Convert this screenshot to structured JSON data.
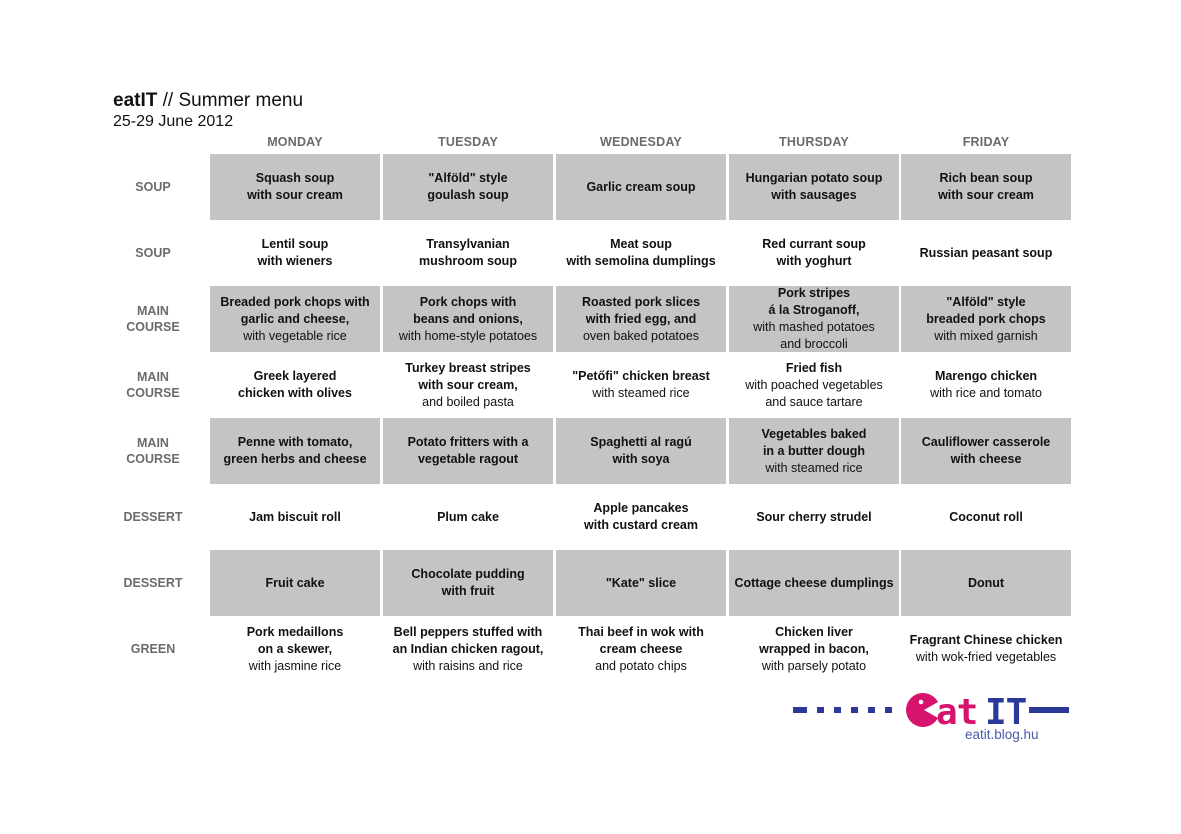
{
  "header": {
    "brand": "eatIT",
    "title_rest": " // Summer menu",
    "dates": "25-29 June 2012"
  },
  "days": [
    "MONDAY",
    "TUESDAY",
    "WEDNESDAY",
    "THURSDAY",
    "FRIDAY"
  ],
  "rows": [
    {
      "label": "SOUP",
      "cells": [
        {
          "main": "Squash soup\nwith sour cream",
          "sub": ""
        },
        {
          "main": "\"Alföld\" style\ngoulash soup",
          "sub": ""
        },
        {
          "main": "Garlic cream soup",
          "sub": ""
        },
        {
          "main": "Hungarian potato soup\nwith sausages",
          "sub": ""
        },
        {
          "main": "Rich bean soup\nwith sour cream",
          "sub": ""
        }
      ]
    },
    {
      "label": "SOUP",
      "cells": [
        {
          "main": "Lentil soup\nwith wieners",
          "sub": ""
        },
        {
          "main": "Transylvanian\nmushroom soup",
          "sub": ""
        },
        {
          "main": "Meat soup\nwith semolina dumplings",
          "sub": ""
        },
        {
          "main": "Red currant soup\nwith yoghurt",
          "sub": ""
        },
        {
          "main": "Russian peasant soup",
          "sub": ""
        }
      ]
    },
    {
      "label": "MAIN\nCOURSE",
      "cells": [
        {
          "main": "Breaded pork chops with\ngarlic and cheese,",
          "sub": "with vegetable rice"
        },
        {
          "main": "Pork chops with\nbeans and onions,",
          "sub": "with home-style potatoes"
        },
        {
          "main": "Roasted pork slices\nwith fried egg, and",
          "sub": "oven baked potatoes"
        },
        {
          "main": "Pork stripes\ná la Stroganoff,",
          "sub": "with mashed potatoes\nand broccoli"
        },
        {
          "main": "\"Alföld\" style\nbreaded pork chops",
          "sub": "with mixed garnish"
        }
      ]
    },
    {
      "label": "MAIN\nCOURSE",
      "cells": [
        {
          "main": "Greek layered\nchicken with olives",
          "sub": ""
        },
        {
          "main": "Turkey breast stripes\nwith sour cream,",
          "sub": "and boiled pasta"
        },
        {
          "main": "\"Petőfi\" chicken breast",
          "sub": "with steamed rice"
        },
        {
          "main": "Fried fish",
          "sub": "with poached vegetables\nand sauce tartare"
        },
        {
          "main": "Marengo chicken",
          "sub": "with rice and tomato"
        }
      ]
    },
    {
      "label": "MAIN\nCOURSE",
      "cells": [
        {
          "main": "Penne with tomato,\ngreen herbs and cheese",
          "sub": ""
        },
        {
          "main": "Potato fritters with a\nvegetable ragout",
          "sub": ""
        },
        {
          "main": "Spaghetti al ragú\nwith soya",
          "sub": ""
        },
        {
          "main": "Vegetables baked\nin a butter dough",
          "sub": "with steamed rice"
        },
        {
          "main": "Cauliflower casserole\nwith cheese",
          "sub": ""
        }
      ]
    },
    {
      "label": "DESSERT",
      "cells": [
        {
          "main": "Jam biscuit roll",
          "sub": ""
        },
        {
          "main": "Plum cake",
          "sub": ""
        },
        {
          "main": "Apple pancakes\nwith custard cream",
          "sub": ""
        },
        {
          "main": "Sour cherry strudel",
          "sub": ""
        },
        {
          "main": "Coconut roll",
          "sub": ""
        }
      ]
    },
    {
      "label": "DESSERT",
      "cells": [
        {
          "main": "Fruit cake",
          "sub": ""
        },
        {
          "main": "Chocolate pudding\nwith fruit",
          "sub": ""
        },
        {
          "main": "\"Kate\" slice",
          "sub": ""
        },
        {
          "main": "Cottage cheese dumplings",
          "sub": ""
        },
        {
          "main": "Donut",
          "sub": ""
        }
      ]
    },
    {
      "label": "GREEN",
      "cells": [
        {
          "main": "Pork medaillons\non a skewer,",
          "sub": "with jasmine rice"
        },
        {
          "main": "Bell peppers stuffed with\nan Indian chicken ragout,",
          "sub": "with raisins and rice"
        },
        {
          "main": "Thai beef in wok with\ncream cheese",
          "sub": "and potato chips"
        },
        {
          "main": "Chicken liver\nwrapped in bacon,",
          "sub": "with parsely potato"
        },
        {
          "main": "Fragrant Chinese chicken",
          "sub": "with wok-fried vegetables"
        }
      ]
    }
  ],
  "logo": {
    "wordmark": "eat IT",
    "url": "eatit.blog.hu",
    "colors": {
      "blue": "#2b3a9a",
      "magenta": "#d6146e"
    }
  }
}
